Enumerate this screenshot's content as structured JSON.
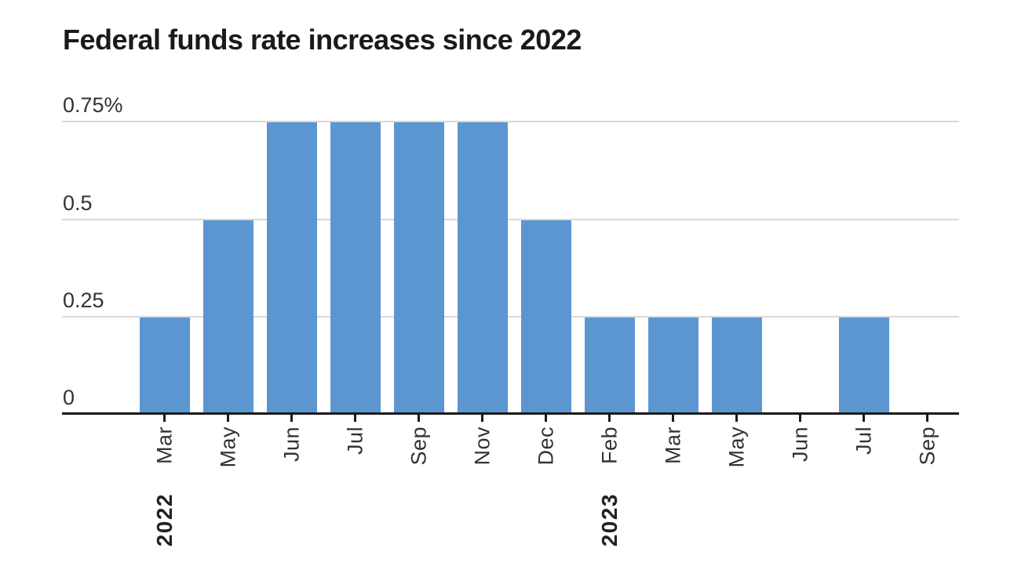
{
  "chart_data": {
    "type": "bar",
    "title": "Federal funds rate increases since 2022",
    "xlabel": "",
    "ylabel": "",
    "unit": "%",
    "ylim": [
      0,
      0.75
    ],
    "grid": true,
    "legend": false,
    "y_ticks": [
      {
        "label": "0.75%",
        "value": 0.75
      },
      {
        "label": "0.5",
        "value": 0.5
      },
      {
        "label": "0.25",
        "value": 0.25
      },
      {
        "label": "0",
        "value": 0
      }
    ],
    "categories": [
      "Mar",
      "May",
      "Jun",
      "Jul",
      "Sep",
      "Nov",
      "Dec",
      "Feb",
      "Mar",
      "May",
      "Jun",
      "Jul",
      "Sep"
    ],
    "values": [
      0.25,
      0.5,
      0.75,
      0.75,
      0.75,
      0.75,
      0.5,
      0.25,
      0.25,
      0.25,
      0,
      0.25,
      0
    ],
    "year_markers": [
      {
        "index": 0,
        "label": "2022"
      },
      {
        "index": 7,
        "label": "2023"
      }
    ],
    "colors": {
      "bar": "#5b96d1",
      "gridline": "#d9d9d9",
      "axis": "#1a1a1a",
      "title": "#1a1a1a",
      "y_label": "#333333",
      "x_label": "#333333",
      "year_label": "#222222"
    }
  }
}
